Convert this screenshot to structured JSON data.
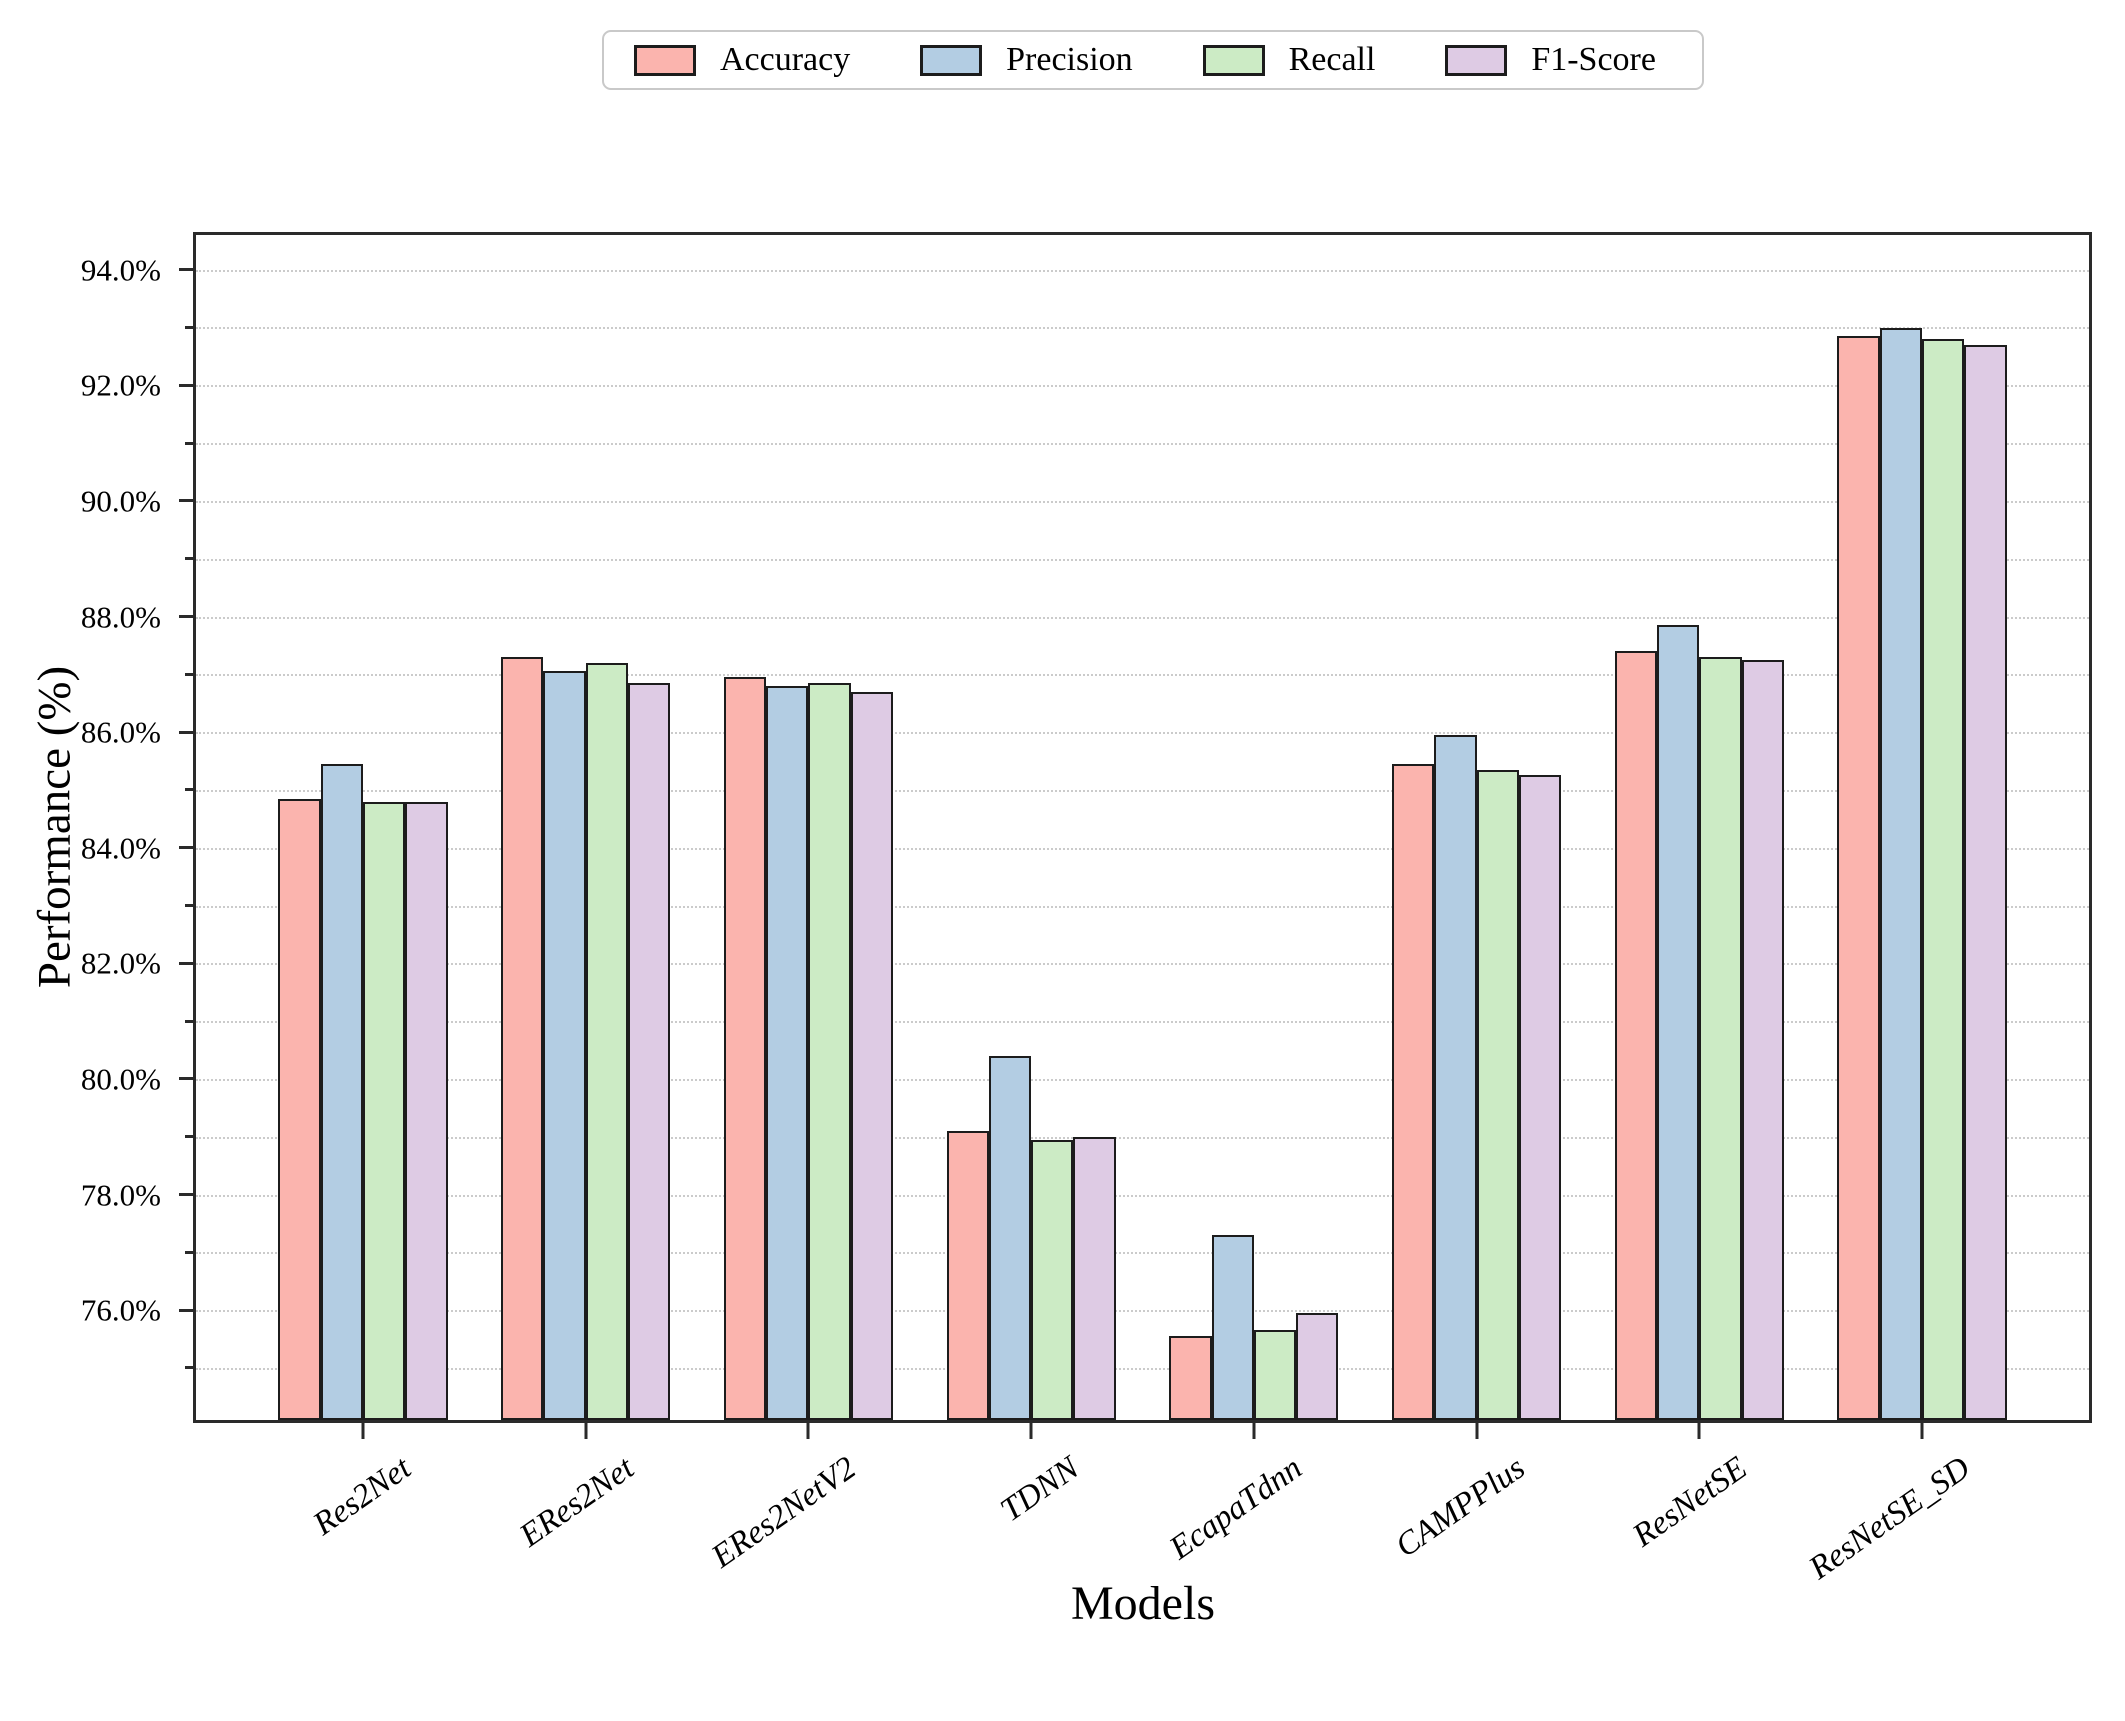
{
  "chart_data": {
    "type": "bar",
    "title": "",
    "xlabel": "Models",
    "ylabel": "Performance (%)",
    "categories": [
      "Res2Net",
      "ERes2Net",
      "ERes2NetV2",
      "TDNN",
      "EcapaTdnn",
      "CAMPPlus",
      "ResNetSE",
      "ResNetSE_SD"
    ],
    "series": [
      {
        "name": "Accuracy",
        "color": "#FBB4AE",
        "values": [
          84.85,
          87.3,
          86.95,
          79.1,
          75.55,
          85.45,
          87.4,
          92.85
        ]
      },
      {
        "name": "Precision",
        "color": "#B3CDE3",
        "values": [
          85.45,
          87.05,
          86.8,
          80.4,
          77.3,
          85.95,
          87.85,
          93.0
        ]
      },
      {
        "name": "Recall",
        "color": "#CCEBC5",
        "values": [
          84.8,
          87.2,
          86.85,
          78.95,
          75.65,
          85.35,
          87.3,
          92.8
        ]
      },
      {
        "name": "F1-Score",
        "color": "#DECBE4",
        "values": [
          84.8,
          86.85,
          86.7,
          79.0,
          75.95,
          85.25,
          87.25,
          92.7
        ]
      }
    ],
    "ylim": [
      74.1,
      94.6
    ],
    "yticks_major": [
      76,
      78,
      80,
      82,
      84,
      86,
      88,
      90,
      92,
      94
    ],
    "ytick_labels": [
      "76.0%",
      "78.0%",
      "80.0%",
      "82.0%",
      "84.0%",
      "86.0%",
      "88.0%",
      "90.0%",
      "92.0%",
      "94.0%"
    ],
    "yticks_minor": [
      75,
      77,
      79,
      81,
      83,
      85,
      87,
      89,
      91,
      93
    ],
    "gridlines": [
      75,
      76,
      77,
      78,
      79,
      80,
      81,
      82,
      83,
      84,
      85,
      86,
      87,
      88,
      89,
      90,
      91,
      92,
      93,
      94
    ],
    "grid_style": "dotted",
    "legend_position": "top center",
    "bar_edge_color": "#1c1c1c",
    "axis_color": "#2a2a2a",
    "grid_color": "#cbcbcb"
  }
}
